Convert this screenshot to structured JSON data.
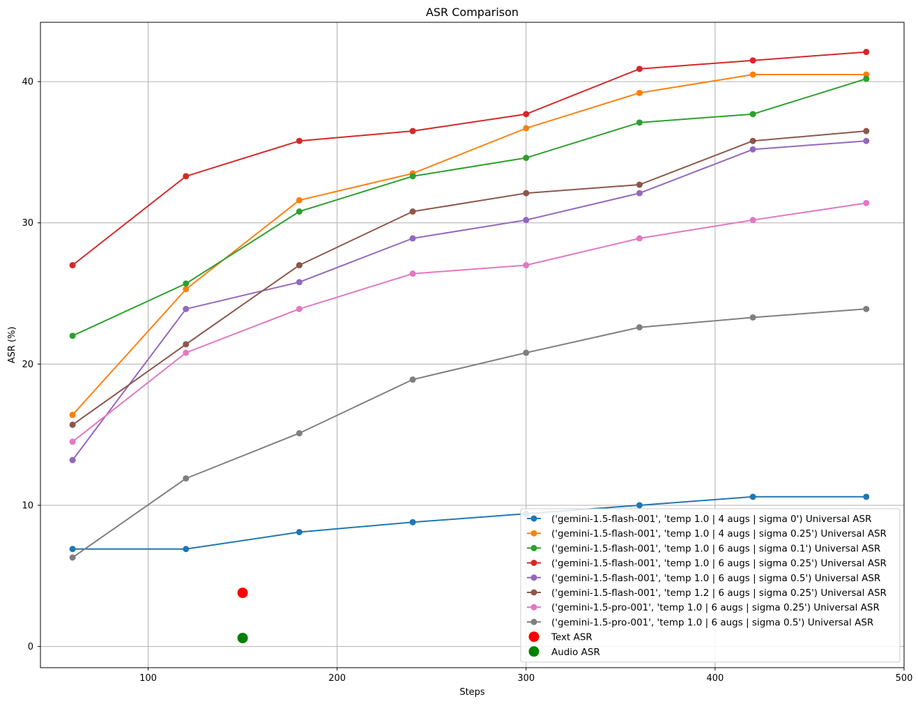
{
  "chart_data": {
    "type": "line",
    "title": "ASR Comparison",
    "xlabel": "Steps",
    "ylabel": "ASR (%)",
    "xlim": [
      43,
      500
    ],
    "ylim": [
      -1.5,
      44.2
    ],
    "x_ticks": [
      100,
      200,
      300,
      400,
      500
    ],
    "y_ticks": [
      0,
      10,
      20,
      30,
      40
    ],
    "x_tick_labels": [
      "100",
      "200",
      "300",
      "400",
      "500"
    ],
    "y_tick_labels": [
      "0",
      "10",
      "20",
      "30",
      "40"
    ],
    "grid": true,
    "legend_position": "lower-right",
    "x": [
      60,
      120,
      180,
      240,
      300,
      360,
      420,
      480
    ],
    "series": [
      {
        "name": "('gemini-1.5-flash-001', 'temp 1.0 | 4 augs | sigma 0') Universal ASR",
        "color": "#1f77b4",
        "values": [
          6.9,
          6.9,
          8.1,
          8.8,
          9.4,
          10.0,
          10.6,
          10.6
        ]
      },
      {
        "name": "('gemini-1.5-flash-001', 'temp 1.0 | 4 augs | sigma 0.25') Universal ASR",
        "color": "#ff7f0e",
        "values": [
          16.4,
          25.3,
          31.6,
          33.5,
          36.7,
          39.2,
          40.5,
          40.5
        ]
      },
      {
        "name": "('gemini-1.5-flash-001', 'temp 1.0 | 6 augs | sigma 0.1') Universal ASR",
        "color": "#2ca02c",
        "values": [
          22.0,
          25.7,
          30.8,
          33.3,
          34.6,
          37.1,
          37.7,
          40.2
        ]
      },
      {
        "name": "('gemini-1.5-flash-001', 'temp 1.0 | 6 augs | sigma 0.25') Universal ASR",
        "color": "#d62728",
        "values": [
          27.0,
          33.3,
          35.8,
          36.5,
          37.7,
          40.9,
          41.5,
          42.1
        ]
      },
      {
        "name": "('gemini-1.5-flash-001', 'temp 1.0 | 6 augs | sigma 0.5') Universal ASR",
        "color": "#9467bd",
        "values": [
          13.2,
          23.9,
          25.8,
          28.9,
          30.2,
          32.1,
          35.2,
          35.8
        ]
      },
      {
        "name": "('gemini-1.5-flash-001', 'temp 1.2 | 6 augs | sigma 0.25') Universal ASR",
        "color": "#8c564b",
        "values": [
          15.7,
          21.4,
          27.0,
          30.8,
          32.1,
          32.7,
          35.8,
          36.5
        ]
      },
      {
        "name": "('gemini-1.5-pro-001', 'temp 1.0 | 6 augs | sigma 0.25') Universal ASR",
        "color": "#e377c2",
        "values": [
          14.5,
          20.8,
          23.9,
          26.4,
          27.0,
          28.9,
          30.2,
          31.4
        ]
      },
      {
        "name": "('gemini-1.5-pro-001', 'temp 1.0 | 6 augs | sigma 0.5') Universal ASR",
        "color": "#7f7f7f",
        "values": [
          6.3,
          11.9,
          15.1,
          18.9,
          20.8,
          22.6,
          23.3,
          23.9
        ]
      }
    ],
    "points": [
      {
        "name": "Text ASR",
        "color": "#ff0000",
        "x": 150,
        "y": 3.8
      },
      {
        "name": "Audio ASR",
        "color": "#008000",
        "x": 150,
        "y": 0.6
      }
    ]
  }
}
